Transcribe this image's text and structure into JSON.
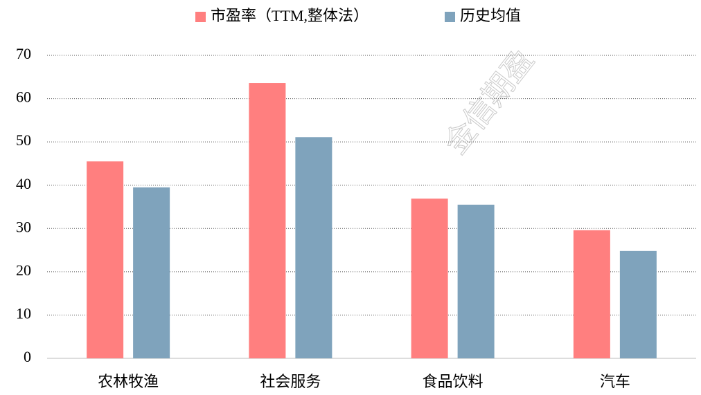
{
  "chart_data": {
    "type": "bar",
    "categories": [
      "农林牧渔",
      "社会服务",
      "食品饮料",
      "汽车"
    ],
    "series": [
      {
        "name": "市盈率（TTM,整体法）",
        "color": "#ff7f7f",
        "values": [
          45.5,
          63.6,
          36.9,
          29.6
        ]
      },
      {
        "name": "历史均值",
        "color": "#7fa3bc",
        "values": [
          39.5,
          51.1,
          35.5,
          24.8
        ]
      }
    ],
    "ylim": [
      0,
      70
    ],
    "yticks": [
      0,
      10,
      20,
      30,
      40,
      50,
      60,
      70
    ],
    "grid": true,
    "legend": "top",
    "watermark": "金信期盈"
  }
}
